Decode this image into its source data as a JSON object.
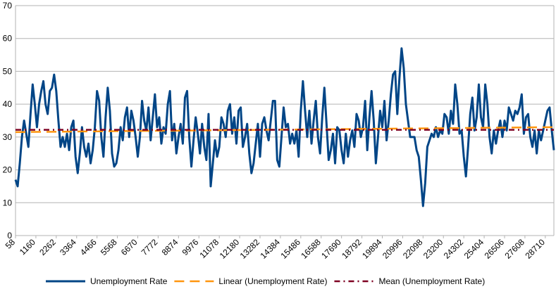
{
  "chart_data": {
    "type": "line",
    "xlim": [
      58,
      29174
    ],
    "ylim": [
      0,
      70
    ],
    "yticks": [
      0,
      10,
      20,
      30,
      40,
      50,
      60,
      70
    ],
    "xticks": [
      58,
      1160,
      2262,
      3364,
      4466,
      5568,
      6670,
      7772,
      8874,
      9976,
      11078,
      12180,
      13282,
      14384,
      15486,
      16588,
      17690,
      18792,
      19894,
      20996,
      22098,
      23200,
      24302,
      25404,
      26506,
      27608,
      28710
    ],
    "grid": true,
    "legend": "bottom",
    "series": [
      {
        "name": "Unemployment Rate",
        "color": "#004586",
        "style": "solid",
        "x": [
          58,
          174,
          290,
          406,
          522,
          638,
          754,
          870,
          986,
          1102,
          1218,
          1334,
          1450,
          1566,
          1682,
          1798,
          1914,
          2030,
          2146,
          2262,
          2378,
          2494,
          2610,
          2726,
          2842,
          2958,
          3074,
          3190,
          3306,
          3422,
          3538,
          3654,
          3770,
          3886,
          4002,
          4118,
          4234,
          4350,
          4466,
          4582,
          4698,
          4814,
          4930,
          5046,
          5162,
          5278,
          5394,
          5510,
          5626,
          5742,
          5858,
          5974,
          6090,
          6206,
          6322,
          6438,
          6554,
          6670,
          6786,
          6902,
          7018,
          7134,
          7250,
          7366,
          7482,
          7598,
          7714,
          7830,
          7946,
          8062,
          8178,
          8294,
          8410,
          8526,
          8642,
          8758,
          8874,
          8990,
          9106,
          9222,
          9338,
          9454,
          9570,
          9686,
          9802,
          9918,
          10034,
          10150,
          10266,
          10382,
          10498,
          10614,
          10730,
          10846,
          10962,
          11078,
          11194,
          11310,
          11426,
          11542,
          11658,
          11774,
          11890,
          12006,
          12122,
          12238,
          12354,
          12470,
          12586,
          12702,
          12818,
          12934,
          13050,
          13166,
          13282,
          13398,
          13514,
          13630,
          13746,
          13862,
          13978,
          14094,
          14210,
          14326,
          14442,
          14558,
          14674,
          14790,
          14906,
          15022,
          15138,
          15254,
          15370,
          15486,
          15602,
          15718,
          15834,
          15950,
          16066,
          16182,
          16298,
          16414,
          16530,
          16646,
          16762,
          16878,
          16994,
          17110,
          17226,
          17342,
          17458,
          17574,
          17690,
          17806,
          17922,
          18038,
          18154,
          18270,
          18386,
          18502,
          18618,
          18734,
          18850,
          18966,
          19082,
          19198,
          19314,
          19430,
          19546,
          19662,
          19778,
          19894,
          20010,
          20126,
          20242,
          20358,
          20474,
          20590,
          20706,
          20822,
          20938,
          21054,
          21170,
          21286,
          21402,
          21518,
          21634,
          21750,
          21866,
          21982,
          22098,
          22214,
          22330,
          22446,
          22562,
          22678,
          22794,
          22910,
          23026,
          23142,
          23258,
          23374,
          23490,
          23606,
          23722,
          23838,
          23954,
          24070,
          24186,
          24302,
          24418,
          24534,
          24650,
          24766,
          24882,
          24998,
          25114,
          25230,
          25346,
          25462,
          25578,
          25694,
          25810,
          25926,
          26042,
          26158,
          26274,
          26390,
          26506,
          26622,
          26738,
          26854,
          26970,
          27086,
          27202,
          27318,
          27434,
          27550,
          27666,
          27782,
          27898,
          28014,
          28130,
          28246,
          28362,
          28478,
          28594,
          28710,
          28826,
          28942,
          29058,
          29174
        ],
        "values": [
          17,
          15,
          22,
          30,
          35,
          31,
          27,
          37,
          46,
          40,
          33,
          40,
          44,
          47,
          40,
          37,
          44,
          45,
          49,
          44,
          35,
          27,
          30,
          27,
          31,
          26,
          33,
          35,
          24,
          19,
          25,
          33,
          27,
          24,
          28,
          22,
          26,
          33,
          44,
          41,
          30,
          24,
          36,
          45,
          38,
          25,
          21,
          22,
          26,
          33,
          29,
          36,
          39,
          30,
          38,
          35,
          30,
          24,
          30,
          41,
          35,
          32,
          39,
          29,
          36,
          43,
          33,
          36,
          28,
          33,
          31,
          40,
          44,
          29,
          34,
          25,
          30,
          34,
          28,
          42,
          44,
          30,
          21,
          29,
          36,
          31,
          25,
          34,
          27,
          23,
          37,
          15,
          22,
          29,
          24,
          27,
          36,
          34,
          30,
          38,
          40,
          31,
          36,
          28,
          38,
          39,
          27,
          30,
          34,
          25,
          19,
          22,
          28,
          34,
          24,
          34,
          36,
          32,
          29,
          35,
          41,
          41,
          23,
          21,
          30,
          39,
          33,
          34,
          28,
          31,
          28,
          32,
          24,
          38,
          47,
          38,
          30,
          38,
          28,
          35,
          41,
          30,
          25,
          36,
          45,
          34,
          23,
          26,
          31,
          22,
          33,
          32,
          26,
          22,
          31,
          24,
          29,
          32,
          27,
          37,
          35,
          30,
          33,
          41,
          26,
          36,
          44,
          35,
          22,
          30,
          38,
          33,
          41,
          29,
          35,
          43,
          49,
          50,
          37,
          48,
          57,
          51,
          40,
          35,
          30,
          30,
          30,
          26,
          24,
          17,
          9,
          16,
          27,
          29,
          31,
          30,
          33,
          30,
          32,
          31,
          37,
          36,
          31,
          38,
          34,
          46,
          40,
          31,
          32,
          24,
          18,
          27,
          37,
          42,
          32,
          36,
          46,
          36,
          33,
          46,
          40,
          30,
          25,
          32,
          28,
          32,
          35,
          30,
          35,
          32,
          39,
          37,
          35,
          38,
          37,
          39,
          43,
          31,
          36,
          37,
          30,
          27,
          32,
          25,
          32,
          29,
          32,
          35,
          38,
          39,
          32,
          26
        ]
      },
      {
        "name": "Linear (Unemployment Rate)",
        "color": "#ff950e",
        "style": "dashed",
        "x": [
          58,
          29174
        ],
        "values": [
          31.5,
          33.0
        ]
      },
      {
        "name": "Mean (Unemployment Rate)",
        "color": "#7e0021",
        "style": "dashdot",
        "x": [
          58,
          29174
        ],
        "values": [
          32.2,
          32.2
        ]
      }
    ]
  }
}
